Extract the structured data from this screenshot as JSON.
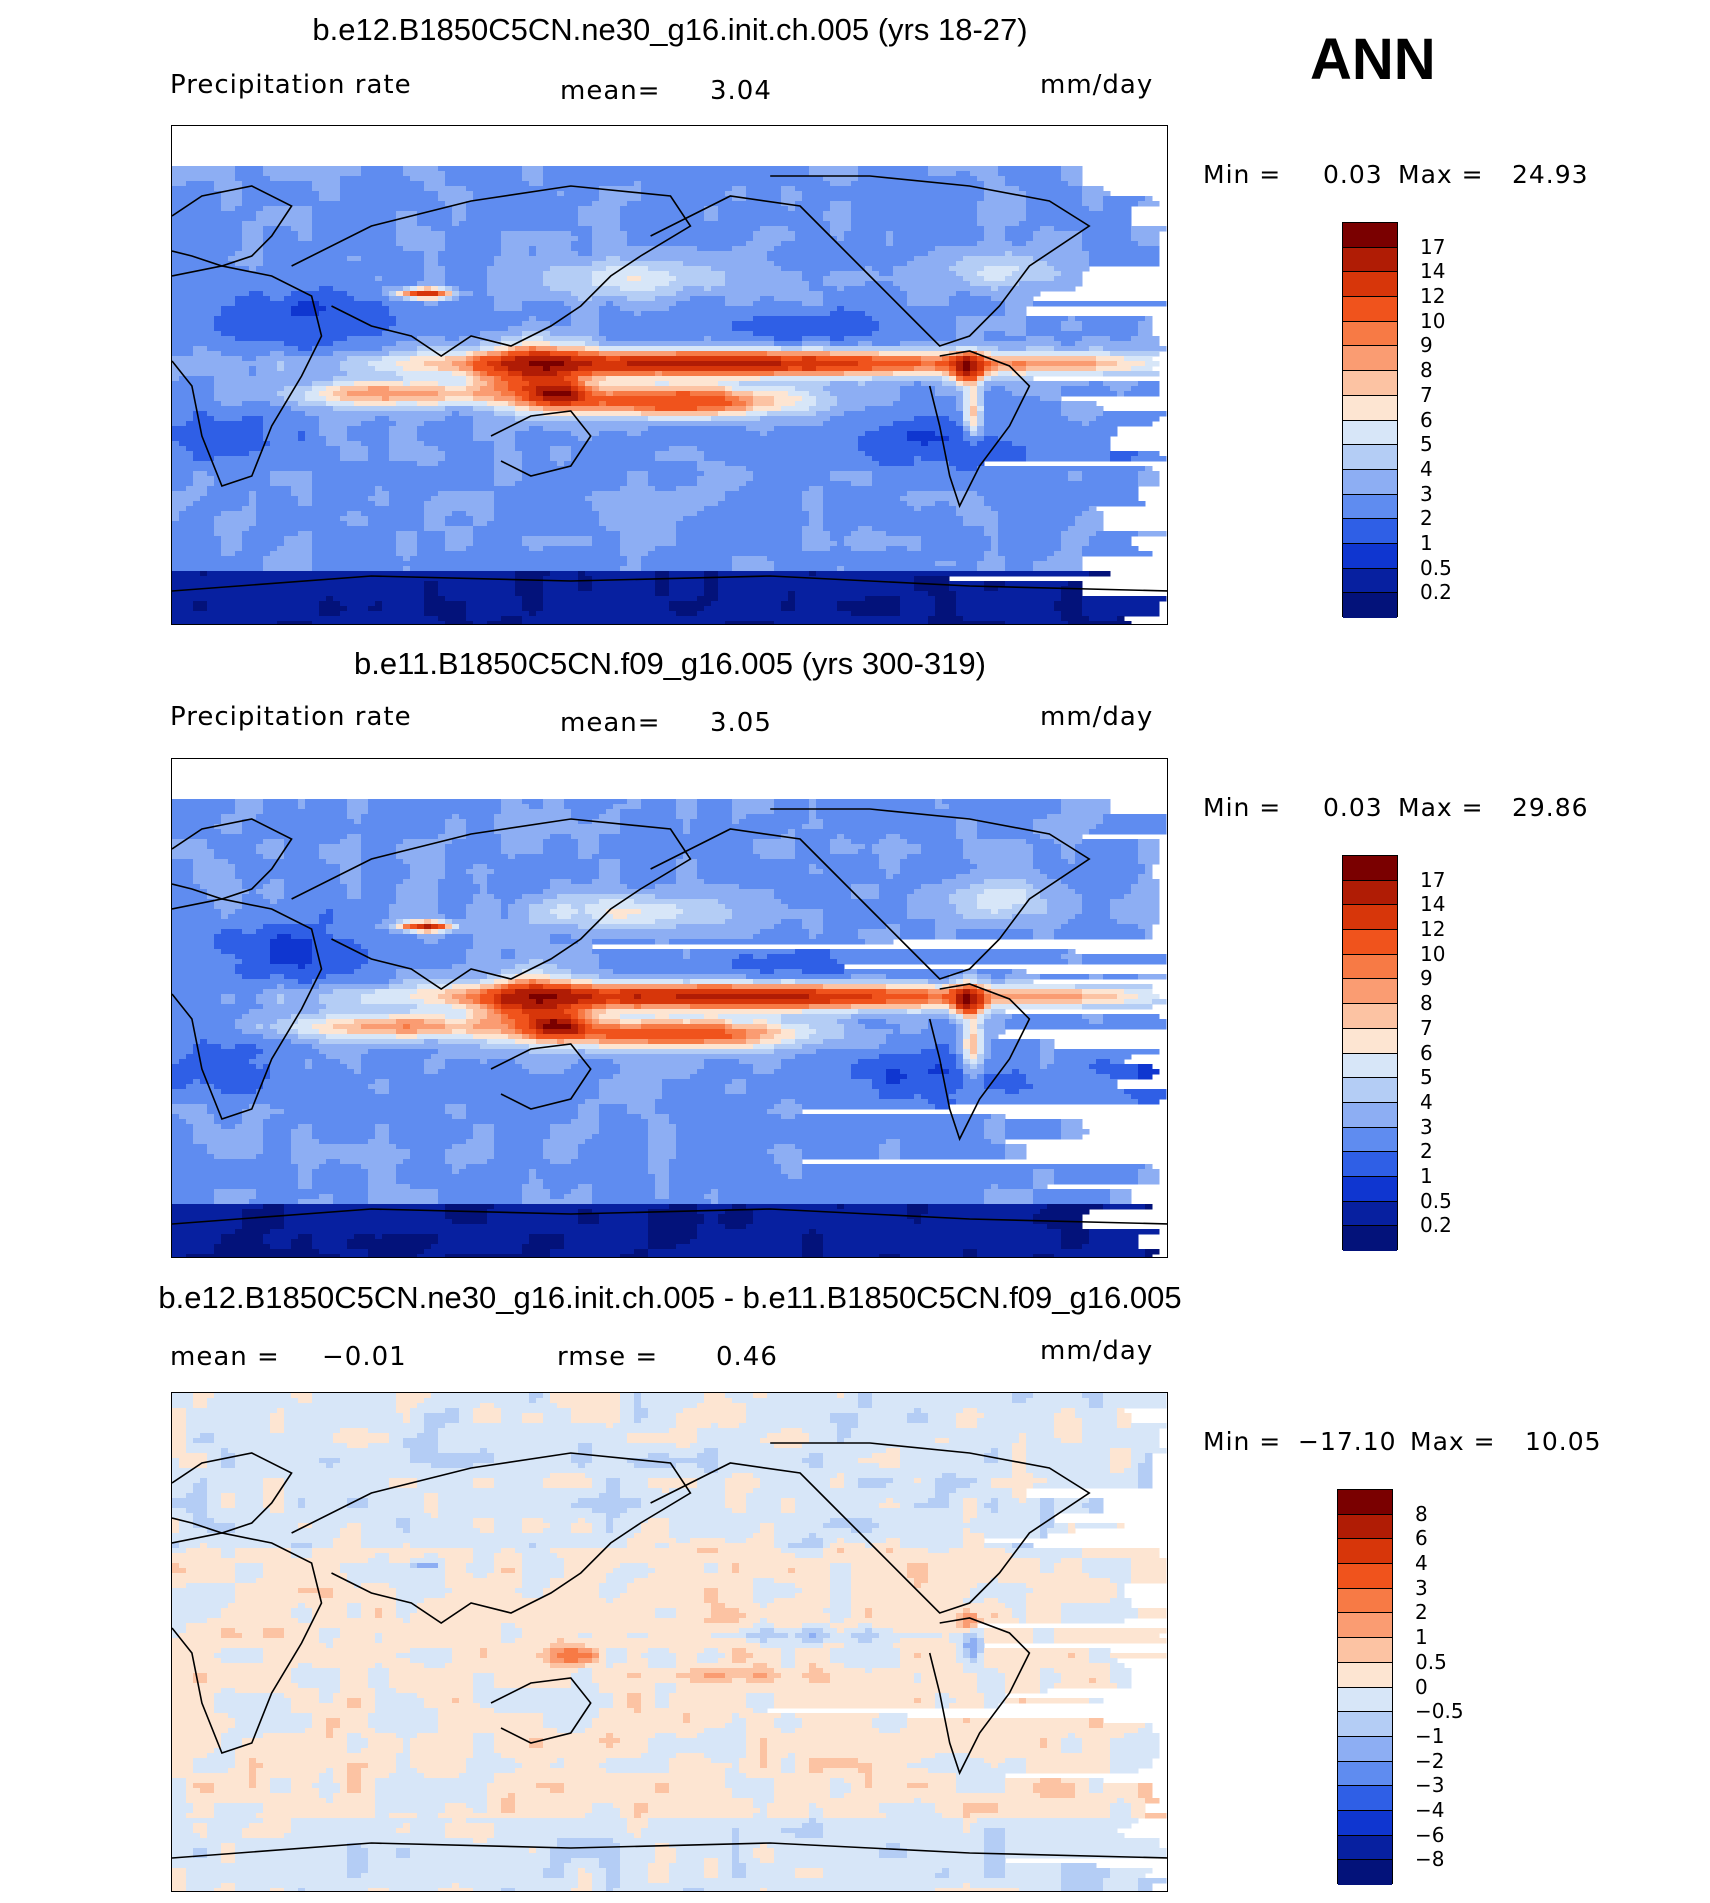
{
  "season": "ANN",
  "chart_data": [
    {
      "type": "heatmap",
      "title": "b.e12.B1850C5CN.ne30_g16.init.ch.005 (yrs 18-27)",
      "variable": "Precipitation rate",
      "mean_label": "mean=",
      "mean": "3.04",
      "units": "mm/day",
      "min_label": "Min =",
      "min": "0.03",
      "max_label": "Max =",
      "max": "24.93",
      "colorbar_levels": [
        "17",
        "14",
        "12",
        "10",
        "9",
        "8",
        "7",
        "6",
        "5",
        "4",
        "3",
        "2",
        "1",
        "0.5",
        "0.2"
      ],
      "palette": "precip"
    },
    {
      "type": "heatmap",
      "title": "b.e11.B1850C5CN.f09_g16.005 (yrs 300-319)",
      "variable": "Precipitation rate",
      "mean_label": "mean=",
      "mean": "3.05",
      "units": "mm/day",
      "min_label": "Min =",
      "min": "0.03",
      "max_label": "Max =",
      "max": "29.86",
      "colorbar_levels": [
        "17",
        "14",
        "12",
        "10",
        "9",
        "8",
        "7",
        "6",
        "5",
        "4",
        "3",
        "2",
        "1",
        "0.5",
        "0.2"
      ],
      "palette": "precip"
    },
    {
      "type": "heatmap",
      "title": "b.e12.B1850C5CN.ne30_g16.init.ch.005 - b.e11.B1850C5CN.f09_g16.005",
      "mean_label": "mean =",
      "mean": "−0.01",
      "rmse_label": "rmse =",
      "rmse": "0.46",
      "units": "mm/day",
      "min_label": "Min =",
      "min": "−17.10",
      "max_label": "Max =",
      "max": "10.05",
      "colorbar_levels": [
        "8",
        "6",
        "4",
        "3",
        "2",
        "1",
        "0.5",
        "0",
        "−0.5",
        "−1",
        "−2",
        "−3",
        "−4",
        "−6",
        "−8"
      ],
      "palette": "diff"
    }
  ],
  "colors": {
    "precip": [
      "#7a0000",
      "#b01c05",
      "#d7360a",
      "#f0531c",
      "#f77a45",
      "#fa9c72",
      "#fcc3a3",
      "#fde5d2",
      "#d7e6f8",
      "#b4cdf5",
      "#8daef3",
      "#5f8cf0",
      "#2f5fe6",
      "#0f36d0",
      "#0720a0",
      "#03127a"
    ],
    "diff": [
      "#7a0000",
      "#b01c05",
      "#d7360a",
      "#f0531c",
      "#f77a45",
      "#fa9c72",
      "#fcc3a3",
      "#fde5d2",
      "#d7e6f8",
      "#b4cdf5",
      "#8daef3",
      "#5f8cf0",
      "#2f5fe6",
      "#0f36d0",
      "#0720a0",
      "#03127a"
    ]
  }
}
